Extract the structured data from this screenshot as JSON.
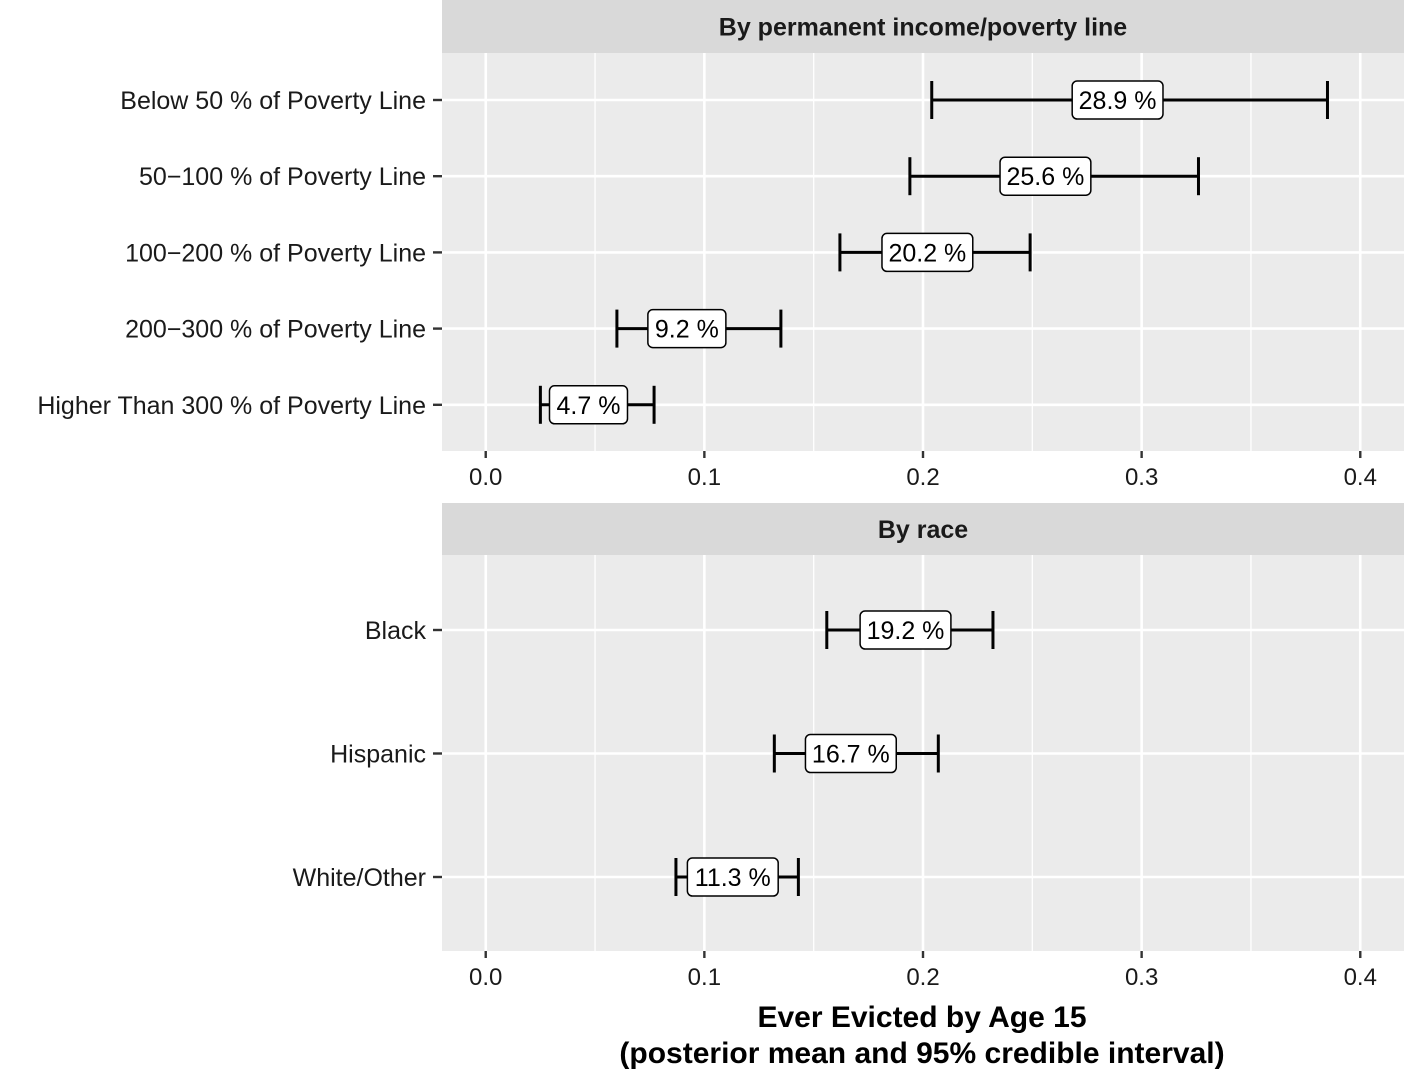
{
  "chart_data": [
    {
      "type": "errorbar",
      "title": "By permanent income/poverty line",
      "categories": [
        "Below 50 % of Poverty Line",
        "50−100 % of Poverty Line",
        "100−200 % of Poverty Line",
        "200−300 % of Poverty Line",
        "Higher Than 300 % of Poverty Line"
      ],
      "mean": [
        0.289,
        0.256,
        0.202,
        0.092,
        0.047
      ],
      "lower": [
        0.204,
        0.194,
        0.162,
        0.06,
        0.025
      ],
      "upper": [
        0.385,
        0.326,
        0.249,
        0.135,
        0.077
      ],
      "labels": [
        "28.9 %",
        "25.6 %",
        "20.2 %",
        "9.2 %",
        "4.7 %"
      ],
      "xlim": [
        -0.02,
        0.42
      ],
      "xticks": [
        0.0,
        0.1,
        0.2,
        0.3,
        0.4
      ],
      "xtick_labels": [
        "0.0",
        "0.1",
        "0.2",
        "0.3",
        "0.4"
      ],
      "grid": true
    },
    {
      "type": "errorbar",
      "title": "By race",
      "categories": [
        "Black",
        "Hispanic",
        "White/Other"
      ],
      "mean": [
        0.192,
        0.167,
        0.113
      ],
      "lower": [
        0.156,
        0.132,
        0.087
      ],
      "upper": [
        0.232,
        0.207,
        0.143
      ],
      "labels": [
        "19.2 %",
        "16.7 %",
        "11.3 %"
      ],
      "xlim": [
        -0.02,
        0.42
      ],
      "xticks": [
        0.0,
        0.1,
        0.2,
        0.3,
        0.4
      ],
      "xtick_labels": [
        "0.0",
        "0.1",
        "0.2",
        "0.3",
        "0.4"
      ],
      "grid": true
    }
  ],
  "xlabel": {
    "line1": "Ever Evicted by Age 15",
    "line2": "(posterior mean and 95% credible interval)"
  },
  "colors": {
    "panel_bg": "#ebebeb",
    "strip_bg": "#d9d9d9",
    "grid": "#ffffff",
    "ink": "#000000"
  }
}
